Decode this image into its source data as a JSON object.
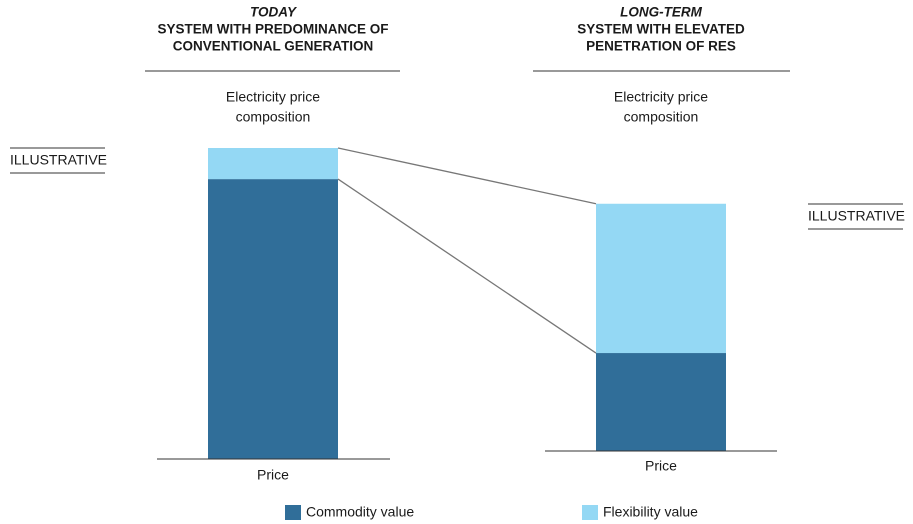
{
  "chart_data": [
    {
      "type": "bar",
      "title": "TODAY",
      "subtitle": [
        "SYSTEM WITH PREDOMINANCE OF",
        "CONVENTIONAL GENERATION"
      ],
      "ylabel": [
        "Electricity price",
        "composition"
      ],
      "annotation": "ILLUSTRATIVE",
      "categories": [
        "Price"
      ],
      "series": [
        {
          "name": "Commodity value",
          "color": "#306e99",
          "values": [
            90
          ]
        },
        {
          "name": "Flexibility value",
          "color": "#94d8f4",
          "values": [
            10
          ]
        }
      ]
    },
    {
      "type": "bar",
      "title": "LONG-TERM",
      "subtitle": [
        "SYSTEM WITH ELEVATED",
        "PENETRATION OF RES"
      ],
      "ylabel": [
        "Electricity price",
        "composition"
      ],
      "annotation": "ILLUSTRATIVE",
      "categories": [
        "Price"
      ],
      "series": [
        {
          "color": "#306e99",
          "values": [
            31.5
          ]
        },
        {
          "color": "#94d8f4",
          "values": [
            48
          ]
        }
      ]
    }
  ]
}
